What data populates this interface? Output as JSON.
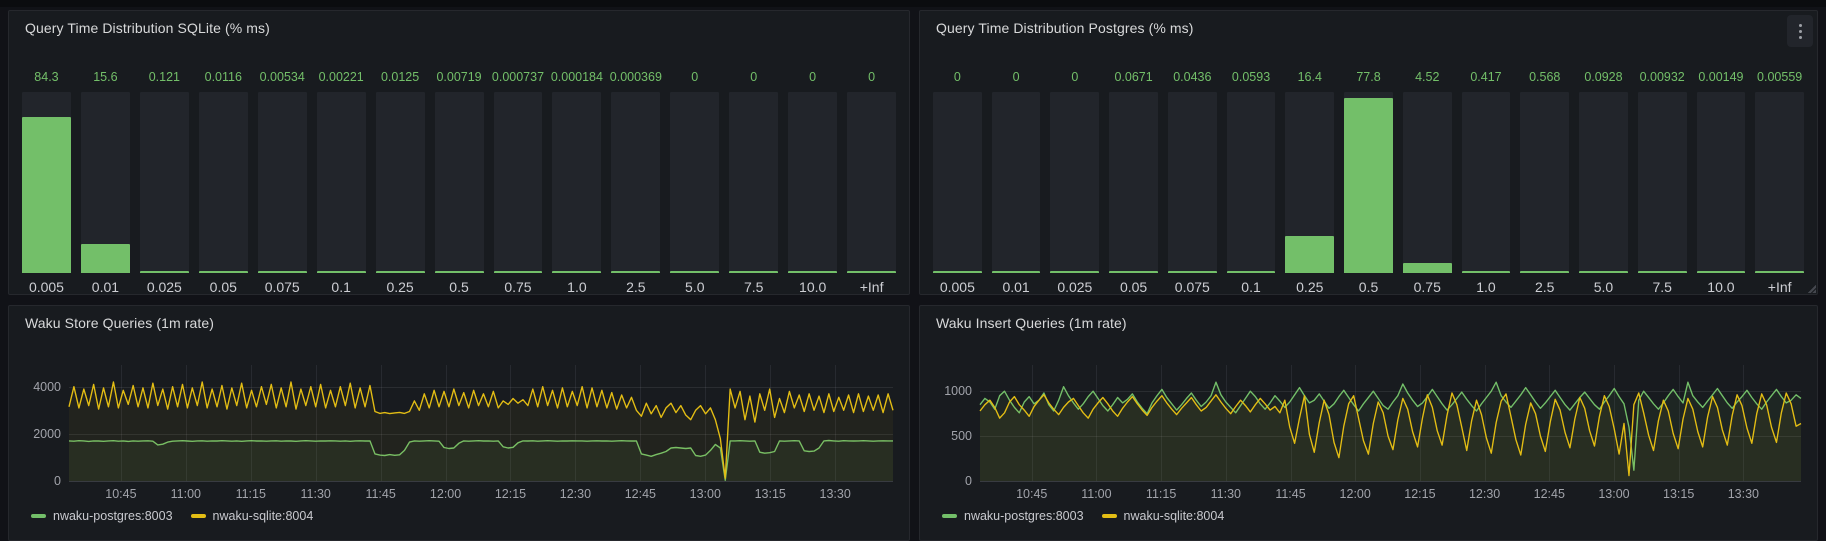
{
  "colors": {
    "green": "#73bf69",
    "yellow": "#e3bd14",
    "value_label": "#73bf69",
    "panel_bg": "#181b1f",
    "page_bg": "#111217",
    "track_bg": "#22252b"
  },
  "chart_data": [
    {
      "id": "sqlite_hist",
      "type": "bar",
      "title": "Query Time Distribution SQLite (% ms)",
      "categories": [
        "0.005",
        "0.01",
        "0.025",
        "0.05",
        "0.075",
        "0.1",
        "0.25",
        "0.5",
        "0.75",
        "1.0",
        "2.5",
        "5.0",
        "7.5",
        "10.0",
        "+Inf"
      ],
      "values": [
        84.3,
        15.6,
        0.121,
        0.0116,
        0.00534,
        0.00221,
        0.0125,
        0.00719,
        0.000737,
        0.000184,
        0.000369,
        0,
        0,
        0,
        0
      ],
      "values_display": [
        "84.3",
        "15.6",
        "0.121",
        "0.0116",
        "0.00534",
        "0.00221",
        "0.0125",
        "0.00719",
        "0.000737",
        "0.000184",
        "0.000369",
        "0",
        "0",
        "0",
        "0"
      ],
      "ylim": [
        0,
        98
      ],
      "bar_color": "green",
      "grid": false,
      "legend_position": "none"
    },
    {
      "id": "postgres_hist",
      "type": "bar",
      "title": "Query Time Distribution Postgres (% ms)",
      "categories": [
        "0.005",
        "0.01",
        "0.025",
        "0.05",
        "0.075",
        "0.1",
        "0.25",
        "0.5",
        "0.75",
        "1.0",
        "2.5",
        "5.0",
        "7.5",
        "10.0",
        "+Inf"
      ],
      "values": [
        0,
        0,
        0,
        0.0671,
        0.0436,
        0.0593,
        16.4,
        77.8,
        4.52,
        0.417,
        0.568,
        0.0928,
        0.00932,
        0.00149,
        0.00559
      ],
      "values_display": [
        "0",
        "0",
        "0",
        "0.0671",
        "0.0436",
        "0.0593",
        "16.4",
        "77.8",
        "4.52",
        "0.417",
        "0.568",
        "0.0928",
        "0.00932",
        "0.00149",
        "0.00559"
      ],
      "ylim": [
        0,
        80.5
      ],
      "bar_color": "green",
      "grid": false,
      "legend_position": "none"
    },
    {
      "id": "store_ts",
      "type": "line",
      "title": "Waku Store Queries (1m rate)",
      "x_ticks": [
        "10:45",
        "11:00",
        "11:15",
        "11:30",
        "11:45",
        "12:00",
        "12:15",
        "12:30",
        "12:45",
        "13:00",
        "13:15",
        "13:30"
      ],
      "y_ticks": [
        0,
        2000,
        4000
      ],
      "ylim": [
        0,
        5600
      ],
      "grid": true,
      "legend_position": "bottom",
      "series": [
        {
          "name": "nwaku-postgres:8003",
          "color": "green",
          "values": [
            1700,
            1690,
            1710,
            1700,
            1680,
            1700,
            1695,
            1685,
            1700,
            1710,
            1690,
            1700,
            1680,
            1700,
            1690,
            1700,
            1705,
            1690,
            1530,
            1560,
            1650,
            1690,
            1700,
            1710,
            1695,
            1685,
            1700,
            1705,
            1690,
            1700,
            1695,
            1710,
            1700,
            1690,
            1700,
            1685,
            1700,
            1710,
            1695,
            1700,
            1690,
            1700,
            1705,
            1690,
            1700,
            1695,
            1685,
            1700,
            1710,
            1700,
            1690,
            1700,
            1695,
            1705,
            1700,
            1690,
            1700,
            1685,
            1700,
            1705,
            1695,
            1700,
            1150,
            1100,
            1080,
            1120,
            1090,
            1110,
            1300,
            1650,
            1700,
            1690,
            1700,
            1710,
            1700,
            1690,
            1420,
            1380,
            1400,
            1600,
            1700,
            1690,
            1700,
            1710,
            1695,
            1700,
            1690,
            1700,
            1450,
            1400,
            1430,
            1620,
            1700,
            1695,
            1705,
            1690,
            1700,
            1710,
            1700,
            1690,
            1700,
            1695,
            1705,
            1700,
            1700,
            1690,
            1700,
            1705,
            1695,
            1700,
            1690,
            1700,
            1710,
            1700,
            1695,
            1700,
            1150,
            1100,
            1050,
            1120,
            1180,
            1250,
            1400,
            1420,
            1400,
            1380,
            1400,
            1080,
            1050,
            1100,
            1300,
            1550,
            1400,
            30,
            1700,
            1700,
            1710,
            1700,
            1690,
            1700,
            1220,
            1180,
            1200,
            1250,
            1700,
            1690,
            1700,
            1710,
            1700,
            1280,
            1250,
            1270,
            1400,
            1700,
            1720,
            1700,
            1690,
            1710,
            1700,
            1695,
            1700,
            1710,
            1700,
            1690,
            1700,
            1705,
            1700,
            1700
          ]
        },
        {
          "name": "nwaku-sqlite:8004",
          "color": "yellow",
          "values": [
            3150,
            4000,
            3100,
            3900,
            3200,
            4100,
            3050,
            3950,
            3150,
            4200,
            3100,
            3850,
            3250,
            4050,
            3150,
            3950,
            3100,
            4150,
            3200,
            3900,
            3050,
            4000,
            3150,
            4100,
            3100,
            3950,
            3200,
            4200,
            3100,
            3900,
            3150,
            4050,
            3050,
            3950,
            3200,
            4150,
            3100,
            3850,
            3150,
            4000,
            3250,
            4100,
            3100,
            3950,
            3150,
            4200,
            3050,
            3900,
            3200,
            4000,
            3150,
            4100,
            3100,
            3850,
            3150,
            4000,
            3200,
            4150,
            3100,
            3950,
            3150,
            4050,
            2950,
            2870,
            2900,
            2860,
            2890,
            2910,
            2870,
            2950,
            3400,
            3000,
            3700,
            3100,
            3850,
            3150,
            3800,
            3150,
            3900,
            3200,
            3750,
            3100,
            3850,
            3200,
            3700,
            3150,
            3800,
            3100,
            3400,
            3250,
            3500,
            3300,
            3450,
            3200,
            3900,
            3150,
            4000,
            3200,
            3850,
            3100,
            3950,
            3150,
            3800,
            3200,
            4000,
            3100,
            3950,
            3150,
            3850,
            3100,
            3750,
            3050,
            3650,
            3100,
            3550,
            3000,
            2750,
            3300,
            2850,
            3200,
            2700,
            3100,
            3300,
            2900,
            3200,
            2800,
            2600,
            3000,
            3200,
            2850,
            3100,
            2600,
            1800,
            120,
            3900,
            3100,
            3800,
            2600,
            3600,
            2500,
            3700,
            3000,
            3900,
            2700,
            3500,
            2900,
            3800,
            3100,
            3650,
            2950,
            3700,
            3000,
            3600,
            2900,
            3700,
            2950,
            3550,
            3000,
            3650,
            2900,
            3700,
            2950,
            3600,
            3000,
            3650,
            2900,
            3700,
            3000
          ]
        }
      ]
    },
    {
      "id": "insert_ts",
      "type": "line",
      "title": "Waku Insert Queries (1m rate)",
      "x_ticks": [
        "10:45",
        "11:00",
        "11:15",
        "11:30",
        "11:45",
        "12:00",
        "12:15",
        "12:30",
        "12:45",
        "13:00",
        "13:15",
        "13:30"
      ],
      "y_ticks": [
        0,
        500,
        1000
      ],
      "ylim": [
        0,
        1470
      ],
      "grid": true,
      "legend_position": "bottom",
      "series": [
        {
          "name": "nwaku-postgres:8003",
          "color": "green",
          "values": [
            850,
            920,
            880,
            800,
            950,
            1000,
            900,
            820,
            760,
            880,
            940,
            860,
            900,
            980,
            850,
            780,
            900,
            1050,
            950,
            870,
            800,
            860,
            940,
            1000,
            920,
            840,
            780,
            850,
            930,
            870,
            910,
            970,
            880,
            810,
            750,
            870,
            950,
            1020,
            930,
            860,
            790,
            850,
            920,
            980,
            900,
            830,
            880,
            950,
            1100,
            960,
            880,
            820,
            760,
            840,
            920,
            1000,
            940,
            860,
            800,
            870,
            950,
            890,
            820,
            880,
            960,
            1040,
            950,
            870,
            900,
            970,
            890,
            810,
            860,
            940,
            1010,
            930,
            850,
            780,
            860,
            930,
            1000,
            920,
            840,
            800,
            880,
            950,
            1080,
            980,
            900,
            830,
            870,
            940,
            1020,
            940,
            860,
            790,
            850,
            920,
            990,
            910,
            840,
            780,
            860,
            930,
            1000,
            1100,
            950,
            880,
            820,
            890,
            960,
            1040,
            960,
            880,
            810,
            870,
            940,
            1010,
            930,
            850,
            790,
            860,
            930,
            990,
            920,
            850,
            800,
            880,
            950,
            1030,
            940,
            860,
            600,
            120,
            900,
            1000,
            930,
            860,
            800,
            870,
            950,
            1020,
            940,
            870,
            1100,
            950,
            880,
            820,
            890,
            960,
            1030,
            950,
            870,
            810,
            880,
            940,
            1010,
            930,
            860,
            800,
            880,
            950,
            1020,
            940,
            870,
            900,
            960,
            920
          ]
        },
        {
          "name": "nwaku-sqlite:8004",
          "color": "yellow",
          "values": [
            780,
            850,
            900,
            820,
            700,
            760,
            880,
            940,
            850,
            790,
            720,
            830,
            900,
            960,
            870,
            800,
            740,
            820,
            880,
            920,
            840,
            760,
            700,
            800,
            870,
            930,
            860,
            780,
            720,
            810,
            880,
            940,
            860,
            790,
            730,
            820,
            890,
            950,
            870,
            800,
            740,
            810,
            870,
            930,
            850,
            780,
            820,
            890,
            960,
            880,
            810,
            750,
            830,
            900,
            840,
            770,
            850,
            920,
            860,
            790,
            830,
            760,
            900,
            600,
            420,
            700,
            950,
            520,
            320,
            650,
            900,
            740,
            430,
            260,
            610,
            860,
            950,
            700,
            450,
            300,
            640,
            880,
            760,
            500,
            350,
            680,
            920,
            800,
            550,
            380,
            700,
            960,
            820,
            560,
            400,
            730,
            980,
            850,
            600,
            340,
            670,
            900,
            740,
            480,
            310,
            650,
            890,
            970,
            720,
            460,
            290,
            630,
            870,
            750,
            500,
            330,
            660,
            910,
            790,
            540,
            370,
            690,
            930,
            810,
            560,
            390,
            720,
            950,
            830,
            580,
            300,
            640,
            60,
            850,
            980,
            760,
            510,
            340,
            670,
            900,
            780,
            530,
            360,
            690,
            920,
            800,
            550,
            380,
            710,
            940,
            820,
            570,
            400,
            730,
            960,
            840,
            590,
            420,
            750,
            970,
            850,
            600,
            430,
            760,
            980,
            860,
            610,
            640
          ]
        }
      ]
    }
  ]
}
